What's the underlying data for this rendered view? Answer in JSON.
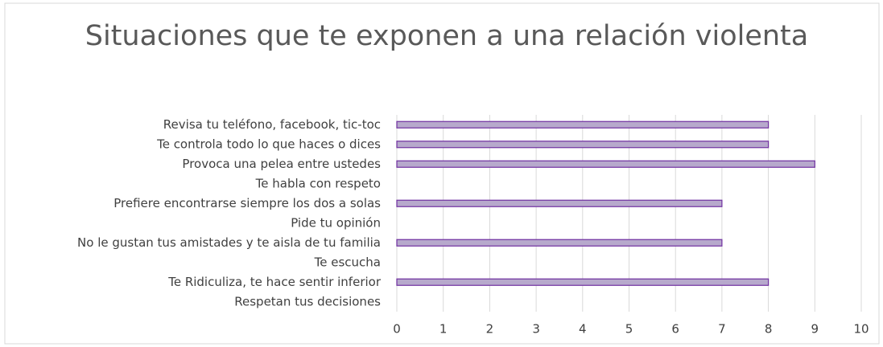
{
  "chart_data": {
    "type": "bar",
    "orientation": "horizontal",
    "title": "Situaciones que te exponen a una relación violenta",
    "categories": [
      "Revisa tu teléfono, facebook, tic-toc",
      "Te controla todo lo que haces o dices",
      "Provoca una pelea entre ustedes",
      "Te habla con respeto",
      "Prefiere encontrarse siempre los dos a solas",
      "Pide tu opinión",
      "No le gustan tus amistades y te aisla de tu familia",
      "Te escucha",
      "Te Ridiculiza, te hace sentir inferior",
      "Respetan tus decisiones"
    ],
    "values": [
      8,
      8,
      9,
      0,
      7,
      0,
      7,
      0,
      8,
      0
    ],
    "color": "#b7a9cc",
    "edge_color": "#7030a0",
    "xlim": [
      0,
      10
    ],
    "xticks": [
      0,
      1,
      2,
      3,
      4,
      5,
      6,
      7,
      8,
      9,
      10
    ],
    "grid": true
  }
}
